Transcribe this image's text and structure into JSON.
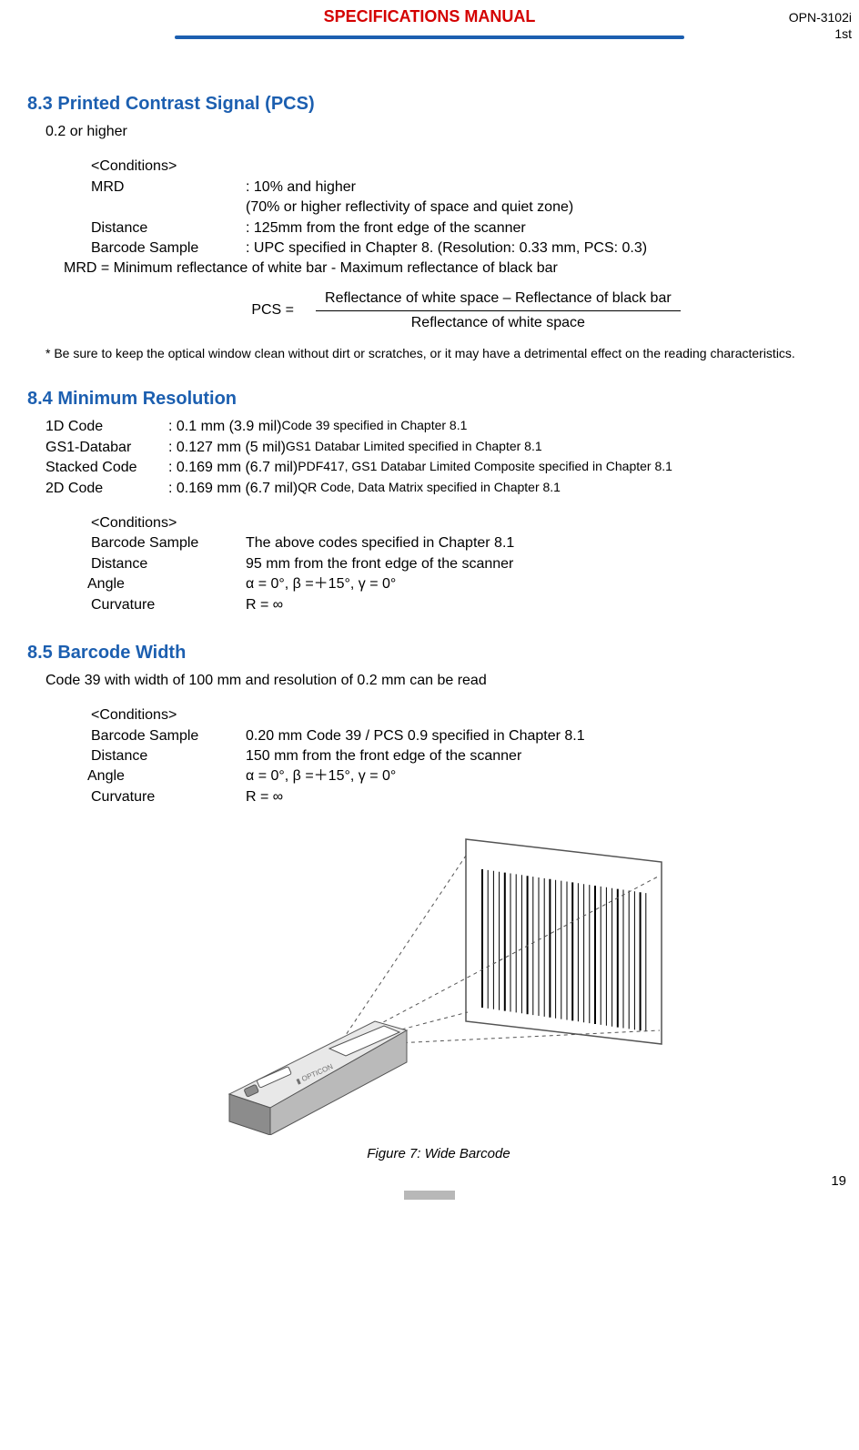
{
  "header": {
    "title": "SPECIFICATIONS MANUAL",
    "title_color": "#d40000",
    "rule_color": "#1c5fb0",
    "model": "OPN-3102i",
    "revision": "1st"
  },
  "section_8_3": {
    "heading": "8.3    Printed Contrast Signal (PCS)",
    "heading_color": "#1c5fb0",
    "intro": "0.2 or higher",
    "conditions_label": "<Conditions>",
    "mrd_label": "MRD",
    "mrd_val": ": 10% and higher",
    "mrd_val2": " (70% or higher reflectivity of space and quiet zone)",
    "distance_label": "Distance",
    "distance_val": ": 125mm from the front edge of the scanner",
    "sample_label": "Barcode Sample",
    "sample_val": ": UPC specified in Chapter 8. (Resolution: 0.33 mm, PCS: 0.3)",
    "mrd_def": "MRD = Minimum reflectance of white bar - Maximum reflectance of black bar",
    "formula_left": "PCS  =",
    "formula_num": "Reflectance of white space – Reflectance of black bar",
    "formula_den": "Reflectance of white space",
    "note": "* Be sure to keep the optical window clean without dirt or scratches, or it may have a detrimental effect on the reading characteristics."
  },
  "section_8_4": {
    "heading": "8.4    Minimum Resolution",
    "heading_color": "#1c5fb0",
    "rows": [
      {
        "label": "1D Code",
        "val": ": 0.1 mm (3.9 mil) ",
        "spec": "Code 39 specified in Chapter 8.1"
      },
      {
        "label": "GS1-Databar",
        "val": ": 0.127 mm (5 mil) ",
        "spec": "GS1 Databar Limited specified in Chapter 8.1"
      },
      {
        "label": "Stacked Code",
        "val": ": 0.169 mm (6.7 mil) ",
        "spec": "PDF417, GS1 Databar Limited Composite specified in Chapter 8.1"
      },
      {
        "label": "2D Code",
        "val": ": 0.169 mm (6.7 mil) ",
        "spec": "QR Code, Data Matrix specified in Chapter 8.1"
      }
    ],
    "conditions_label": "<Conditions>",
    "sample_label": "Barcode Sample",
    "sample_val": "The above codes specified in Chapter 8.1",
    "distance_label": "Distance",
    "distance_val": "95 mm from the front edge of the scanner",
    "angle_label": "Angle",
    "angle_val": "α = 0°, β =＋15°, γ = 0°",
    "curvature_label": "Curvature",
    "curvature_val": "R = ∞"
  },
  "section_8_5": {
    "heading": "8.5    Barcode Width",
    "heading_color": "#1c5fb0",
    "intro": "Code 39 with width of 100 mm and resolution of 0.2 mm can be read",
    "conditions_label": "<Conditions>",
    "sample_label": "Barcode Sample",
    "sample_val": "0.20 mm Code 39 / PCS 0.9 specified in Chapter 8.1",
    "distance_label": "Distance",
    "distance_val": "150 mm from the front edge of the scanner",
    "angle_label": "Angle",
    "angle_val": "α = 0°, β =＋15°, γ = 0°",
    "curvature_label": "Curvature",
    "curvature_val": "R = ∞",
    "figure_caption": "Figure 7: Wide Barcode"
  },
  "page_number": "19",
  "diagram": {
    "stroke": "#545454",
    "fill_light": "#e8e8e8",
    "fill_mid": "#bababa",
    "fill_dark": "#8c8c8c",
    "dash": "4 4"
  }
}
